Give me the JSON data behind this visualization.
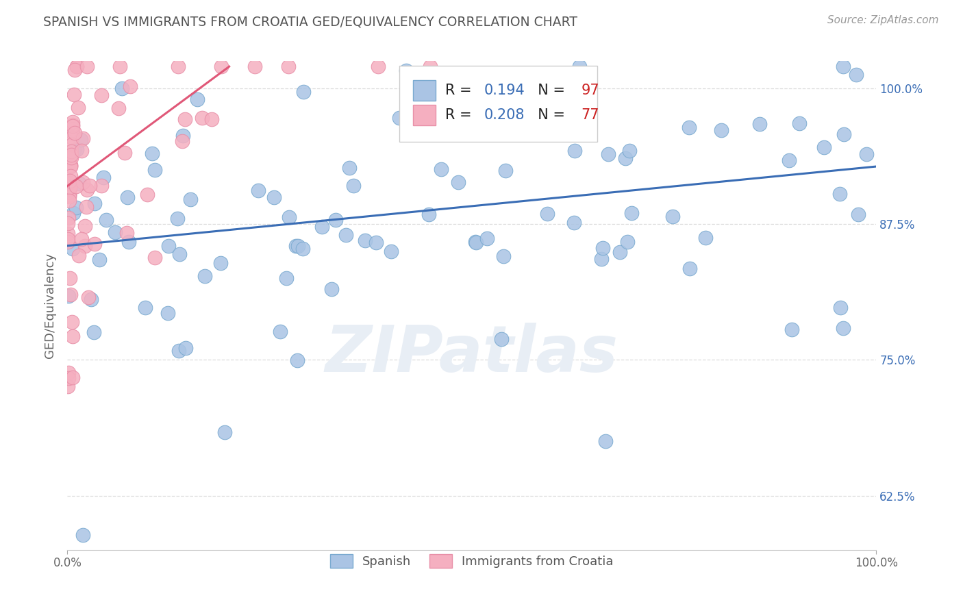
{
  "title": "SPANISH VS IMMIGRANTS FROM CROATIA GED/EQUIVALENCY CORRELATION CHART",
  "source": "Source: ZipAtlas.com",
  "xlabel_blue": "Spanish",
  "xlabel_pink": "Immigrants from Croatia",
  "ylabel": "GED/Equivalency",
  "xlim": [
    0.0,
    1.0
  ],
  "ylim": [
    0.575,
    1.025
  ],
  "yticks": [
    0.625,
    0.75,
    0.875,
    1.0
  ],
  "ytick_labels": [
    "62.5%",
    "75.0%",
    "87.5%",
    "100.0%"
  ],
  "blue_R": "0.194",
  "blue_N": "97",
  "pink_R": "0.208",
  "pink_N": "77",
  "blue_color": "#aac4e4",
  "blue_edge_color": "#7aaad0",
  "blue_line_color": "#3a6db5",
  "pink_color": "#f5afc0",
  "pink_edge_color": "#e890a8",
  "pink_line_color": "#e05878",
  "background_color": "#ffffff",
  "grid_color": "#dddddd",
  "title_color": "#555555",
  "watermark_color": "#e8eef5",
  "legend_R_color": "#3a6db5",
  "legend_N_color": "#cc2222",
  "blue_line_x": [
    0.0,
    1.0
  ],
  "blue_line_y": [
    0.855,
    0.928
  ],
  "pink_line_x": [
    0.0,
    0.2
  ],
  "pink_line_y": [
    0.91,
    1.02
  ]
}
